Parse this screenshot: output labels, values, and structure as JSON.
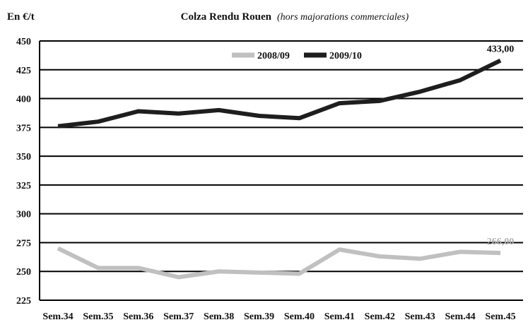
{
  "chart_data": {
    "type": "line",
    "title": "Colza Rendu Rouen",
    "subtitle": "(hors majorations commerciales)",
    "ylabel": "En €/t",
    "xlabel": "",
    "categories": [
      "Sem.34",
      "Sem.35",
      "Sem.36",
      "Sem.37",
      "Sem.38",
      "Sem.39",
      "Sem.40",
      "Sem.41",
      "Sem.42",
      "Sem.43",
      "Sem.44",
      "Sem.45"
    ],
    "ylim": [
      225,
      450
    ],
    "yticks": [
      225,
      250,
      275,
      300,
      325,
      350,
      375,
      400,
      425,
      450
    ],
    "grid": "horizontal",
    "legend_position": "top-center",
    "series": [
      {
        "name": "2008/09",
        "color": "#c0c0c0",
        "values": [
          270,
          253,
          253,
          245,
          250,
          249,
          248,
          269,
          263,
          261,
          267,
          266
        ],
        "end_label": "266,00"
      },
      {
        "name": "2009/10",
        "color": "#1e1e1e",
        "values": [
          376,
          380,
          389,
          387,
          390,
          385,
          383,
          396,
          398,
          406,
          416,
          433
        ],
        "end_label": "433,00"
      }
    ]
  }
}
